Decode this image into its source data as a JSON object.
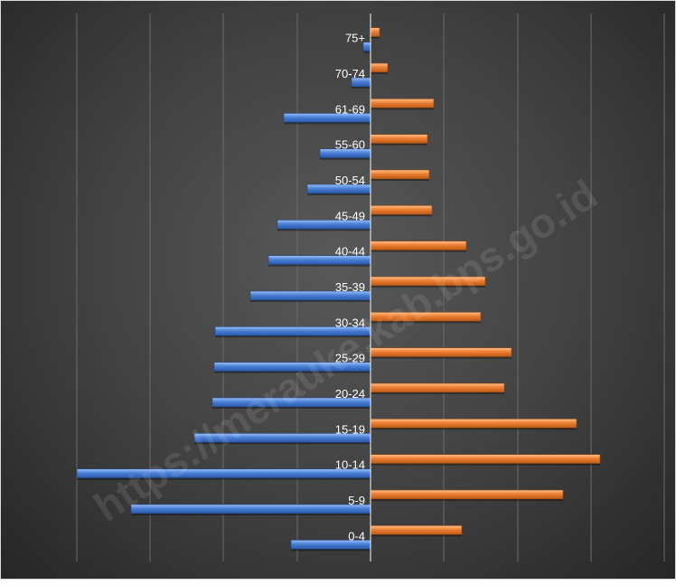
{
  "chart_data": {
    "type": "bar",
    "orientation": "horizontal",
    "layout": "population-pyramid",
    "categories": [
      "0-4",
      "5-9",
      "10-14",
      "15-19",
      "20-24",
      "25-29",
      "30-34",
      "35-39",
      "40-44",
      "45-49",
      "50-54",
      "55-60",
      "61-69",
      "70-74",
      "75+"
    ],
    "series": [
      {
        "side": "left",
        "color": "#4a7fd6",
        "values": [
          88,
          265,
          325,
          195,
          175,
          173,
          172,
          133,
          113,
          103,
          70,
          56,
          96,
          21,
          8
        ]
      },
      {
        "side": "right",
        "color": "#ed7d31",
        "values": [
          101,
          213,
          254,
          228,
          148,
          156,
          122,
          127,
          106,
          68,
          65,
          63,
          70,
          19,
          10
        ]
      }
    ],
    "xlim": [
      -325,
      325
    ],
    "gridlines": [
      -325,
      -244,
      -163,
      -81,
      0,
      81,
      163,
      244,
      325
    ],
    "grid": true,
    "legend": "none",
    "title": "",
    "xlabel": "",
    "ylabel": ""
  },
  "watermark": {
    "text": "https://merauke.kab.bps.go.id"
  }
}
